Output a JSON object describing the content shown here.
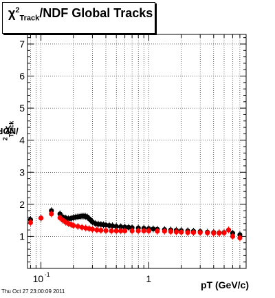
{
  "title": {
    "symbol": "χ",
    "sup": "2",
    "sub": "Track",
    "rest": "/NDF  Global Tracks"
  },
  "ylabel": {
    "symbol": "χ",
    "sup": "2",
    "sub": "Track",
    "rest": "/NDF"
  },
  "timestamp": "Thu Oct 27 23:00:09 2011",
  "colors": {
    "series_black": "#000000",
    "series_red": "#ff0000",
    "grid": "#000000"
  },
  "chart_data": {
    "type": "scatter",
    "title": "χ²_Track/NDF  Global Tracks",
    "xlabel": "pT (GeV/c)",
    "ylabel": "χ²_Track/NDF",
    "x_scale": "log",
    "xlim": [
      0.075,
      8
    ],
    "ylim": [
      0,
      7.3
    ],
    "grid": true,
    "x_tick_labels": [
      {
        "value": 0.1,
        "base": "10",
        "exp": "-1"
      },
      {
        "value": 1,
        "base": "1",
        "exp": ""
      }
    ],
    "y_ticks": [
      1,
      2,
      3,
      4,
      5,
      6,
      7
    ],
    "series": [
      {
        "color": "#000000",
        "x": [
          0.08,
          0.1,
          0.125,
          0.15,
          0.16,
          0.17,
          0.18,
          0.19,
          0.2,
          0.21,
          0.22,
          0.23,
          0.24,
          0.25,
          0.26,
          0.27,
          0.28,
          0.29,
          0.3,
          0.32,
          0.34,
          0.36,
          0.38,
          0.4,
          0.43,
          0.46,
          0.5,
          0.55,
          0.6,
          0.65,
          0.7,
          0.8,
          0.9,
          1.0,
          1.1,
          1.2,
          1.4,
          1.6,
          1.8,
          2.0,
          2.3,
          2.6,
          3.0,
          3.5,
          4.0,
          4.5,
          5.0,
          6.0,
          7.0
        ],
        "y": [
          1.52,
          1.57,
          1.8,
          1.7,
          1.6,
          1.57,
          1.55,
          1.56,
          1.58,
          1.6,
          1.61,
          1.62,
          1.63,
          1.63,
          1.62,
          1.6,
          1.55,
          1.5,
          1.45,
          1.4,
          1.38,
          1.37,
          1.36,
          1.35,
          1.34,
          1.33,
          1.31,
          1.3,
          1.29,
          1.28,
          1.27,
          1.26,
          1.25,
          1.24,
          1.23,
          1.22,
          1.21,
          1.2,
          1.19,
          1.18,
          1.17,
          1.16,
          1.15,
          1.13,
          1.12,
          1.11,
          1.12,
          1.1,
          1.05
        ]
      },
      {
        "color": "#ff0000",
        "x": [
          0.08,
          0.1,
          0.125,
          0.15,
          0.16,
          0.17,
          0.18,
          0.19,
          0.2,
          0.22,
          0.24,
          0.26,
          0.28,
          0.3,
          0.33,
          0.36,
          0.4,
          0.45,
          0.5,
          0.55,
          0.6,
          0.7,
          0.8,
          0.9,
          1.0,
          1.2,
          1.4,
          1.6,
          1.8,
          2.0,
          2.3,
          2.6,
          3.0,
          3.5,
          4.0,
          4.5,
          5.0,
          5.5,
          6.0,
          7.0
        ],
        "y": [
          1.43,
          1.57,
          1.7,
          1.58,
          1.5,
          1.44,
          1.4,
          1.37,
          1.34,
          1.31,
          1.28,
          1.26,
          1.24,
          1.22,
          1.2,
          1.19,
          1.18,
          1.17,
          1.17,
          1.17,
          1.17,
          1.17,
          1.17,
          1.17,
          1.17,
          1.16,
          1.16,
          1.15,
          1.14,
          1.13,
          1.12,
          1.12,
          1.12,
          1.11,
          1.1,
          1.1,
          1.11,
          1.2,
          1.0,
          0.95
        ]
      }
    ]
  }
}
